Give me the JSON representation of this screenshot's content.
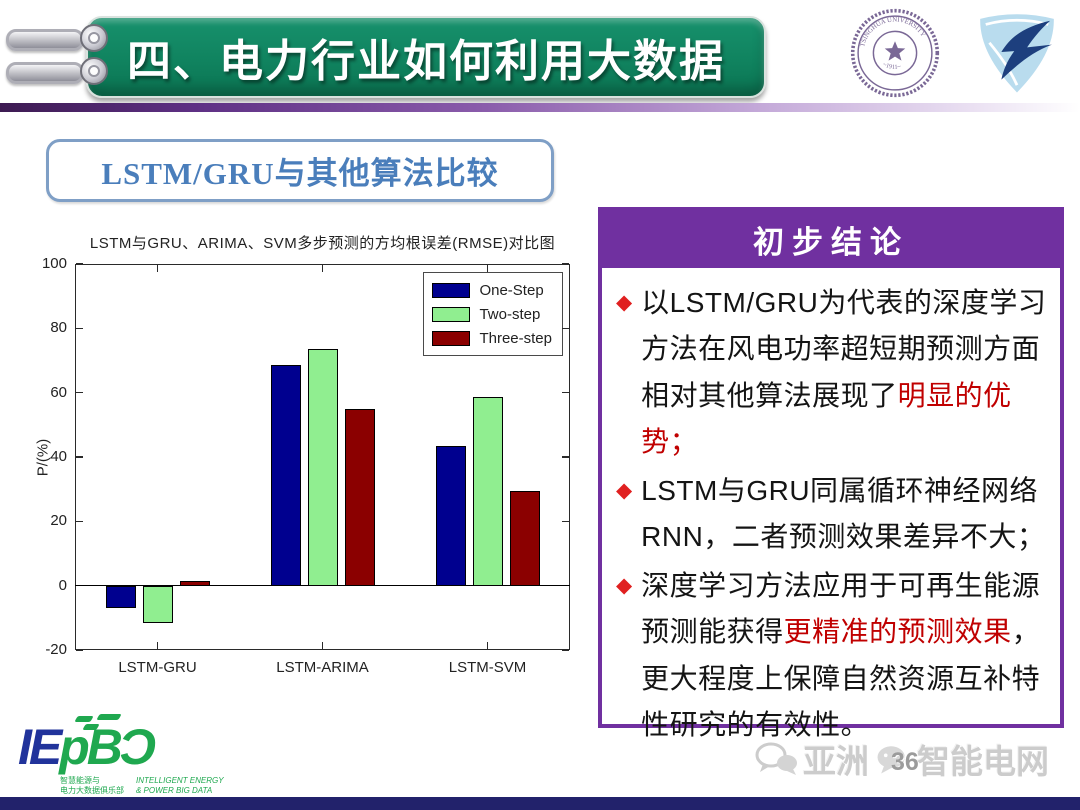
{
  "header": {
    "title": "四、电力行业如何利用大数据"
  },
  "logos": {
    "tsinghua": {
      "latin": "TSINGHUA  UNIVERSITY",
      "year": "~1911~"
    }
  },
  "section_title": "LSTM/GRU与其他算法比较",
  "chart_data": {
    "type": "bar",
    "title": "LSTM与GRU、ARIMA、SVM多步预测的方均根误差(RMSE)对比图",
    "categories": [
      "LSTM-GRU",
      "LSTM-ARIMA",
      "LSTM-SVM"
    ],
    "series": [
      {
        "name": "One-Step",
        "color": "#00008F",
        "values": [
          -7,
          68.5,
          43.5
        ]
      },
      {
        "name": "Two-step",
        "color": "#90EE90",
        "values": [
          -11.5,
          73.5,
          58.5
        ]
      },
      {
        "name": "Three-step",
        "color": "#8B0000",
        "values": [
          1.5,
          55,
          29.5
        ]
      }
    ],
    "xlabel": "",
    "ylabel": "P/(%)",
    "ylim": [
      -20,
      100
    ],
    "ytick_step": 20,
    "grid": false,
    "legend_position": "top-right"
  },
  "conclusion": {
    "title": "初步结论",
    "bullet_marker": "◆",
    "bullets": [
      {
        "pre": "以LSTM/GRU为代表的深度学习方法在风电功率超短期预测方面相对其他算法展现了",
        "red": "明显的优势；",
        "post": ""
      },
      {
        "pre": "LSTM与GRU同属循环神经网络RNN，二者预测效果差异不大；",
        "red": "",
        "post": ""
      },
      {
        "pre": "深度学习方法应用于可再生能源预测能获得",
        "red": "更精准的预测效果",
        "post": "，更大程度上保障自然资源互补特性研究的有效性。"
      }
    ]
  },
  "footer": {
    "iepbd": {
      "letters_blue": "IE",
      "letters_green": "pBƆ",
      "cn_line1": "智慧能源与",
      "cn_line2": "电力大数据俱乐部",
      "en_line1": "INTELLIGENT ENERGY",
      "en_line2": "& POWER BIG DATA"
    },
    "watermark": {
      "part1": "亚洲",
      "part2": "智能电网"
    },
    "page_number": "36"
  },
  "colors": {
    "banner_green": "#10835F",
    "divider_purple": "#5E3084",
    "panel_purple": "#7030A0",
    "accent_red": "#C00000",
    "title_blue": "#4A7EBB",
    "bottom_bar_navy": "#22226B"
  }
}
